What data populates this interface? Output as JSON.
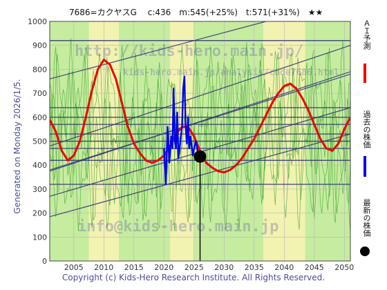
{
  "header": {
    "title": "7686=カクヤスG　 c:436　m:545(+25%)　t:571(+31%)　★★"
  },
  "side_label": "Generated on Monday 2026/1/5.",
  "footer": {
    "copyright": "Copyright (c) Kids-Hero Research Institute. All Rights Reserved."
  },
  "watermarks": {
    "top": "http://kids-hero.main.jp/",
    "sub": "kids-hero.main.jp/analysis/code7686.html",
    "bottom": "info@kids-hero.main.jp"
  },
  "legend": [
    {
      "label": "ＡＩ予測",
      "color": "#ee0000"
    },
    {
      "label": "過去の株価",
      "color": "#0000ee"
    },
    {
      "label": "最新の株価",
      "color": "#000000"
    }
  ],
  "colors": {
    "prediction": "#ee0000",
    "past": "#0000ee",
    "latest": "#000000",
    "band_green": "#c6ec9f",
    "band_yellow": "#f6f3b2",
    "trend": "#333377"
  },
  "chart_data": {
    "type": "line",
    "xlim": [
      2001,
      2051
    ],
    "ylim": [
      0,
      1000
    ],
    "x_ticks": [
      2005,
      2010,
      2015,
      2020,
      2025,
      2030,
      2035,
      2040,
      2045,
      2050
    ],
    "y_ticks": [
      0,
      100,
      200,
      300,
      400,
      500,
      600,
      700,
      800,
      900,
      1000
    ],
    "grid": true,
    "series": [
      {
        "name": "ＡＩ予測",
        "x": [
          2001,
          2002,
          2003,
          2004,
          2005,
          2006,
          2007,
          2008,
          2009,
          2010,
          2011,
          2012,
          2013,
          2014,
          2015,
          2016,
          2017,
          2018,
          2019,
          2020,
          2021,
          2022,
          2023,
          2024,
          2025,
          2026,
          2027,
          2028,
          2029,
          2030,
          2031,
          2032,
          2033,
          2034,
          2035,
          2036,
          2037,
          2038,
          2039,
          2040,
          2041,
          2042,
          2043,
          2044,
          2045,
          2046,
          2047,
          2048,
          2049,
          2050,
          2051
        ],
        "y": [
          590,
          540,
          460,
          420,
          440,
          500,
          600,
          710,
          800,
          840,
          820,
          760,
          660,
          560,
          490,
          450,
          420,
          410,
          420,
          440,
          480,
          530,
          560,
          560,
          520,
          460,
          410,
          390,
          375,
          370,
          380,
          400,
          430,
          470,
          510,
          560,
          610,
          660,
          700,
          730,
          740,
          720,
          680,
          630,
          570,
          510,
          470,
          460,
          490,
          550,
          600
        ]
      },
      {
        "name": "過去の株価",
        "x": [
          2020.0,
          2020.3,
          2020.6,
          2020.9,
          2021.2,
          2021.4,
          2021.6,
          2021.8,
          2022.0,
          2022.2,
          2022.4,
          2022.6,
          2022.8,
          2023.0,
          2023.2,
          2023.4,
          2023.6,
          2023.8,
          2024.0,
          2024.2,
          2024.4,
          2024.6,
          2024.8,
          2025.0,
          2025.3,
          2025.6,
          2026.0
        ],
        "y": [
          470,
          320,
          560,
          410,
          520,
          470,
          720,
          500,
          470,
          620,
          430,
          470,
          520,
          560,
          720,
          770,
          560,
          490,
          600,
          470,
          520,
          480,
          440,
          470,
          500,
          460,
          436
        ]
      }
    ],
    "latest_point": {
      "x": 2026.0,
      "y": 436
    },
    "horizontal_levels": [
      920,
      640,
      600,
      570,
      530,
      500,
      470,
      420,
      320
    ],
    "trend_lines": [
      {
        "x1": 2001,
        "y1": 760,
        "x2": 2040,
        "y2": 1020
      },
      {
        "x1": 2001,
        "y1": 480,
        "x2": 2051,
        "y2": 900
      },
      {
        "x1": 2001,
        "y1": 375,
        "x2": 2051,
        "y2": 790
      },
      {
        "x1": 2001,
        "y1": 380,
        "x2": 2051,
        "y2": 780
      },
      {
        "x1": 2001,
        "y1": 270,
        "x2": 2051,
        "y2": 640
      },
      {
        "x1": 2001,
        "y1": 185,
        "x2": 2051,
        "y2": 530
      }
    ]
  }
}
